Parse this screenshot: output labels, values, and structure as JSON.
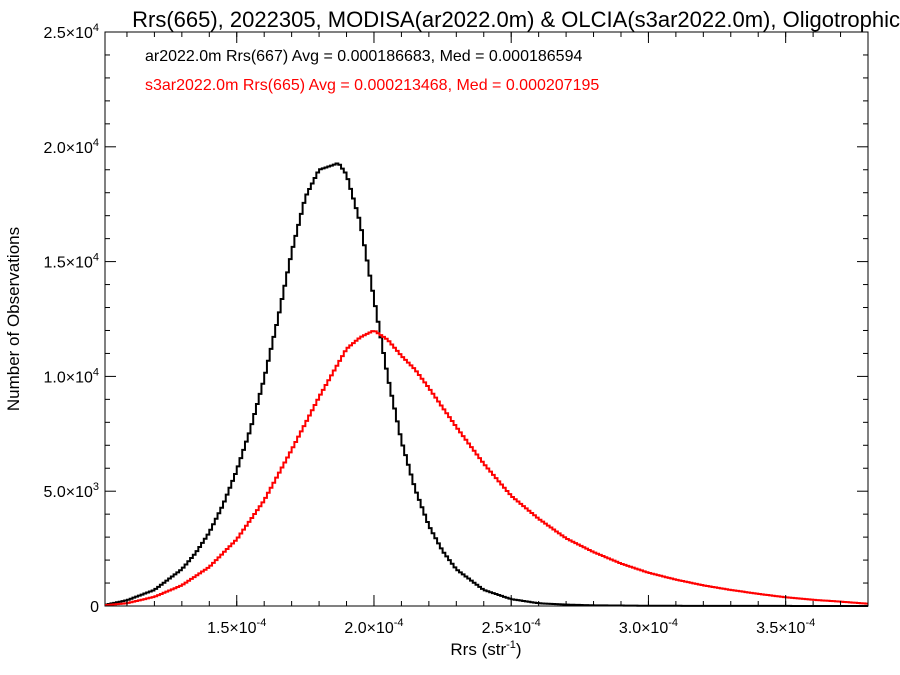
{
  "chart_data": {
    "type": "histogram",
    "title": "Rrs(665), 2022305, MODISA(ar2022.0m) & OLCIA(s3ar2022.0m), Oligotrophic",
    "xlabel": "Rrs (str",
    "xlabel_sup": "-1",
    "xlabel_close": ")",
    "ylabel": "Number of Observations",
    "xlim": [
      0.000102,
      0.00038
    ],
    "ylim": [
      0,
      25000
    ],
    "x_ticks": [
      {
        "value": 0.00015,
        "mant": "1.5",
        "exp": "-4"
      },
      {
        "value": 0.0002,
        "mant": "2.0",
        "exp": "-4"
      },
      {
        "value": 0.00025,
        "mant": "2.5",
        "exp": "-4"
      },
      {
        "value": 0.0003,
        "mant": "3.0",
        "exp": "-4"
      },
      {
        "value": 0.00035,
        "mant": "3.5",
        "exp": "-4"
      }
    ],
    "y_ticks": [
      {
        "value": 0,
        "mant": "0",
        "exp": ""
      },
      {
        "value": 5000,
        "mant": "5.0",
        "exp": "3"
      },
      {
        "value": 10000,
        "mant": "1.0",
        "exp": "4"
      },
      {
        "value": 15000,
        "mant": "1.5",
        "exp": "4"
      },
      {
        "value": 20000,
        "mant": "2.0",
        "exp": "4"
      },
      {
        "value": 25000,
        "mant": "2.5",
        "exp": "4"
      }
    ],
    "legend_placement": "top-left",
    "series": [
      {
        "name": "ar2022.0m Rrs(667)",
        "legend_text": "ar2022.0m Rrs(667) Avg = 0.000186683, Med = 0.000186594",
        "color": "#000000",
        "x": [
          0.000102,
          0.00011,
          0.00012,
          0.00013,
          0.000135,
          0.00014,
          0.000145,
          0.00015,
          0.000155,
          0.00016,
          0.000165,
          0.00017,
          0.000175,
          0.00018,
          0.000185,
          0.000187,
          0.00019,
          0.000195,
          0.0002,
          0.000205,
          0.00021,
          0.000215,
          0.00022,
          0.000225,
          0.00023,
          0.00024,
          0.00025,
          0.00026,
          0.00027,
          0.00028,
          0.0003,
          0.00033,
          0.00038
        ],
        "y": [
          50,
          250,
          700,
          1600,
          2300,
          3200,
          4400,
          5900,
          7700,
          9900,
          12500,
          15400,
          17800,
          19000,
          19200,
          19300,
          18800,
          16700,
          13400,
          10000,
          7200,
          5100,
          3500,
          2400,
          1600,
          700,
          300,
          120,
          60,
          30,
          10,
          5,
          0
        ]
      },
      {
        "name": "s3ar2022.0m Rrs(665)",
        "legend_text": "s3ar2022.0m Rrs(665) Avg = 0.000213468, Med = 0.000207195",
        "color": "#ff0000",
        "x": [
          0.000102,
          0.00011,
          0.00012,
          0.00013,
          0.00014,
          0.00015,
          0.00016,
          0.00017,
          0.00018,
          0.00019,
          0.000195,
          0.0002,
          0.000205,
          0.00021,
          0.000215,
          0.00022,
          0.00023,
          0.00024,
          0.00025,
          0.00026,
          0.00027,
          0.00028,
          0.00029,
          0.0003,
          0.00031,
          0.00032,
          0.00033,
          0.00034,
          0.00035,
          0.00036,
          0.00037,
          0.00038
        ],
        "y": [
          30,
          120,
          400,
          900,
          1700,
          2900,
          4600,
          6800,
          9100,
          11200,
          11700,
          12000,
          11600,
          10900,
          10300,
          9500,
          7800,
          6200,
          4800,
          3800,
          2950,
          2350,
          1850,
          1450,
          1150,
          900,
          700,
          530,
          380,
          270,
          190,
          100
        ]
      }
    ]
  }
}
